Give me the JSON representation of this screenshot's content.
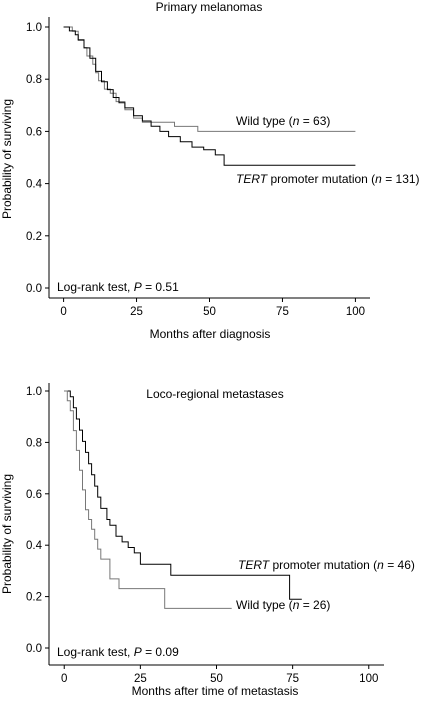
{
  "chart_data": [
    {
      "type": "line",
      "subtype": "kaplan-meier-step",
      "title": "Primary melanomas",
      "xlabel": "Months after diagnosis",
      "ylabel": "Probability of surviving",
      "xlim": [
        -5,
        105
      ],
      "ylim": [
        0,
        1.0
      ],
      "xticks": [
        0,
        25,
        50,
        75,
        100
      ],
      "yticks": [
        0.0,
        0.2,
        0.4,
        0.6,
        0.8,
        1.0
      ],
      "grid": false,
      "test_prefix": "Log-rank test, ",
      "test_p_symbol": "P",
      "test_p_value": " = 0.51",
      "series": [
        {
          "label_prefix": "Wild type (",
          "label_n": "n",
          "label_suffix": " = 63)",
          "color": "#777777",
          "points": [
            [
              0,
              1.0
            ],
            [
              3,
              0.984
            ],
            [
              5,
              0.952
            ],
            [
              7,
              0.921
            ],
            [
              8,
              0.889
            ],
            [
              10,
              0.857
            ],
            [
              11,
              0.825
            ],
            [
              12,
              0.794
            ],
            [
              14,
              0.762
            ],
            [
              16,
              0.746
            ],
            [
              18,
              0.714
            ],
            [
              21,
              0.683
            ],
            [
              24,
              0.651
            ],
            [
              27,
              0.635
            ],
            [
              35,
              0.635
            ],
            [
              38,
              0.619
            ],
            [
              46,
              0.6
            ],
            [
              100,
              0.6
            ]
          ]
        },
        {
          "label_prefix": "",
          "label_italic": "TERT",
          "label_mid": " promoter mutation (",
          "label_n": "n",
          "label_suffix": " = 131)",
          "color": "#000000",
          "points": [
            [
              0,
              1.0
            ],
            [
              2,
              0.985
            ],
            [
              4,
              0.97
            ],
            [
              5,
              0.95
            ],
            [
              7,
              0.92
            ],
            [
              9,
              0.88
            ],
            [
              11,
              0.83
            ],
            [
              13,
              0.79
            ],
            [
              15,
              0.76
            ],
            [
              17,
              0.73
            ],
            [
              19,
              0.71
            ],
            [
              21,
              0.69
            ],
            [
              24,
              0.66
            ],
            [
              27,
              0.64
            ],
            [
              30,
              0.62
            ],
            [
              33,
              0.6
            ],
            [
              36,
              0.58
            ],
            [
              40,
              0.56
            ],
            [
              44,
              0.54
            ],
            [
              48,
              0.53
            ],
            [
              52,
              0.51
            ],
            [
              55,
              0.47
            ],
            [
              100,
              0.47
            ]
          ]
        }
      ]
    },
    {
      "type": "line",
      "subtype": "kaplan-meier-step",
      "title": "Loco-regional metastases",
      "xlabel": "Months after time of metastasis",
      "ylabel": "Probability of surviving",
      "xlim": [
        -5,
        105
      ],
      "ylim": [
        0,
        1.0
      ],
      "xticks": [
        0,
        25,
        50,
        75,
        100
      ],
      "yticks": [
        0.0,
        0.2,
        0.4,
        0.6,
        0.8,
        1.0
      ],
      "grid": false,
      "test_prefix": "Log-rank test, ",
      "test_p_symbol": "P",
      "test_p_value": " = 0.09",
      "series": [
        {
          "label_prefix": "",
          "label_italic": "TERT",
          "label_mid": " promoter mutation (",
          "label_n": "n",
          "label_suffix": " = 46)",
          "color": "#000000",
          "points": [
            [
              0,
              1.0
            ],
            [
              2,
              0.978
            ],
            [
              3,
              0.935
            ],
            [
              4,
              0.891
            ],
            [
              5,
              0.848
            ],
            [
              6,
              0.804
            ],
            [
              7,
              0.761
            ],
            [
              8,
              0.717
            ],
            [
              9,
              0.674
            ],
            [
              10,
              0.63
            ],
            [
              11,
              0.587
            ],
            [
              12,
              0.543
            ],
            [
              14,
              0.5
            ],
            [
              15,
              0.478
            ],
            [
              17,
              0.435
            ],
            [
              19,
              0.413
            ],
            [
              21,
              0.391
            ],
            [
              23,
              0.37
            ],
            [
              25,
              0.326
            ],
            [
              35,
              0.283
            ],
            [
              74,
              0.283
            ],
            [
              74,
              0.19
            ],
            [
              78,
              0.19
            ]
          ]
        },
        {
          "label_prefix": "Wild type (",
          "label_n": "n",
          "label_suffix": " = 26)",
          "color": "#777777",
          "points": [
            [
              0,
              1.0
            ],
            [
              1,
              0.962
            ],
            [
              2,
              0.923
            ],
            [
              3,
              0.846
            ],
            [
              4,
              0.769
            ],
            [
              5,
              0.692
            ],
            [
              6,
              0.615
            ],
            [
              7,
              0.538
            ],
            [
              8,
              0.5
            ],
            [
              9,
              0.462
            ],
            [
              10,
              0.423
            ],
            [
              11,
              0.385
            ],
            [
              12,
              0.346
            ],
            [
              15,
              0.269
            ],
            [
              18,
              0.231
            ],
            [
              30,
              0.231
            ],
            [
              33,
              0.154
            ],
            [
              55,
              0.154
            ]
          ]
        }
      ]
    }
  ]
}
